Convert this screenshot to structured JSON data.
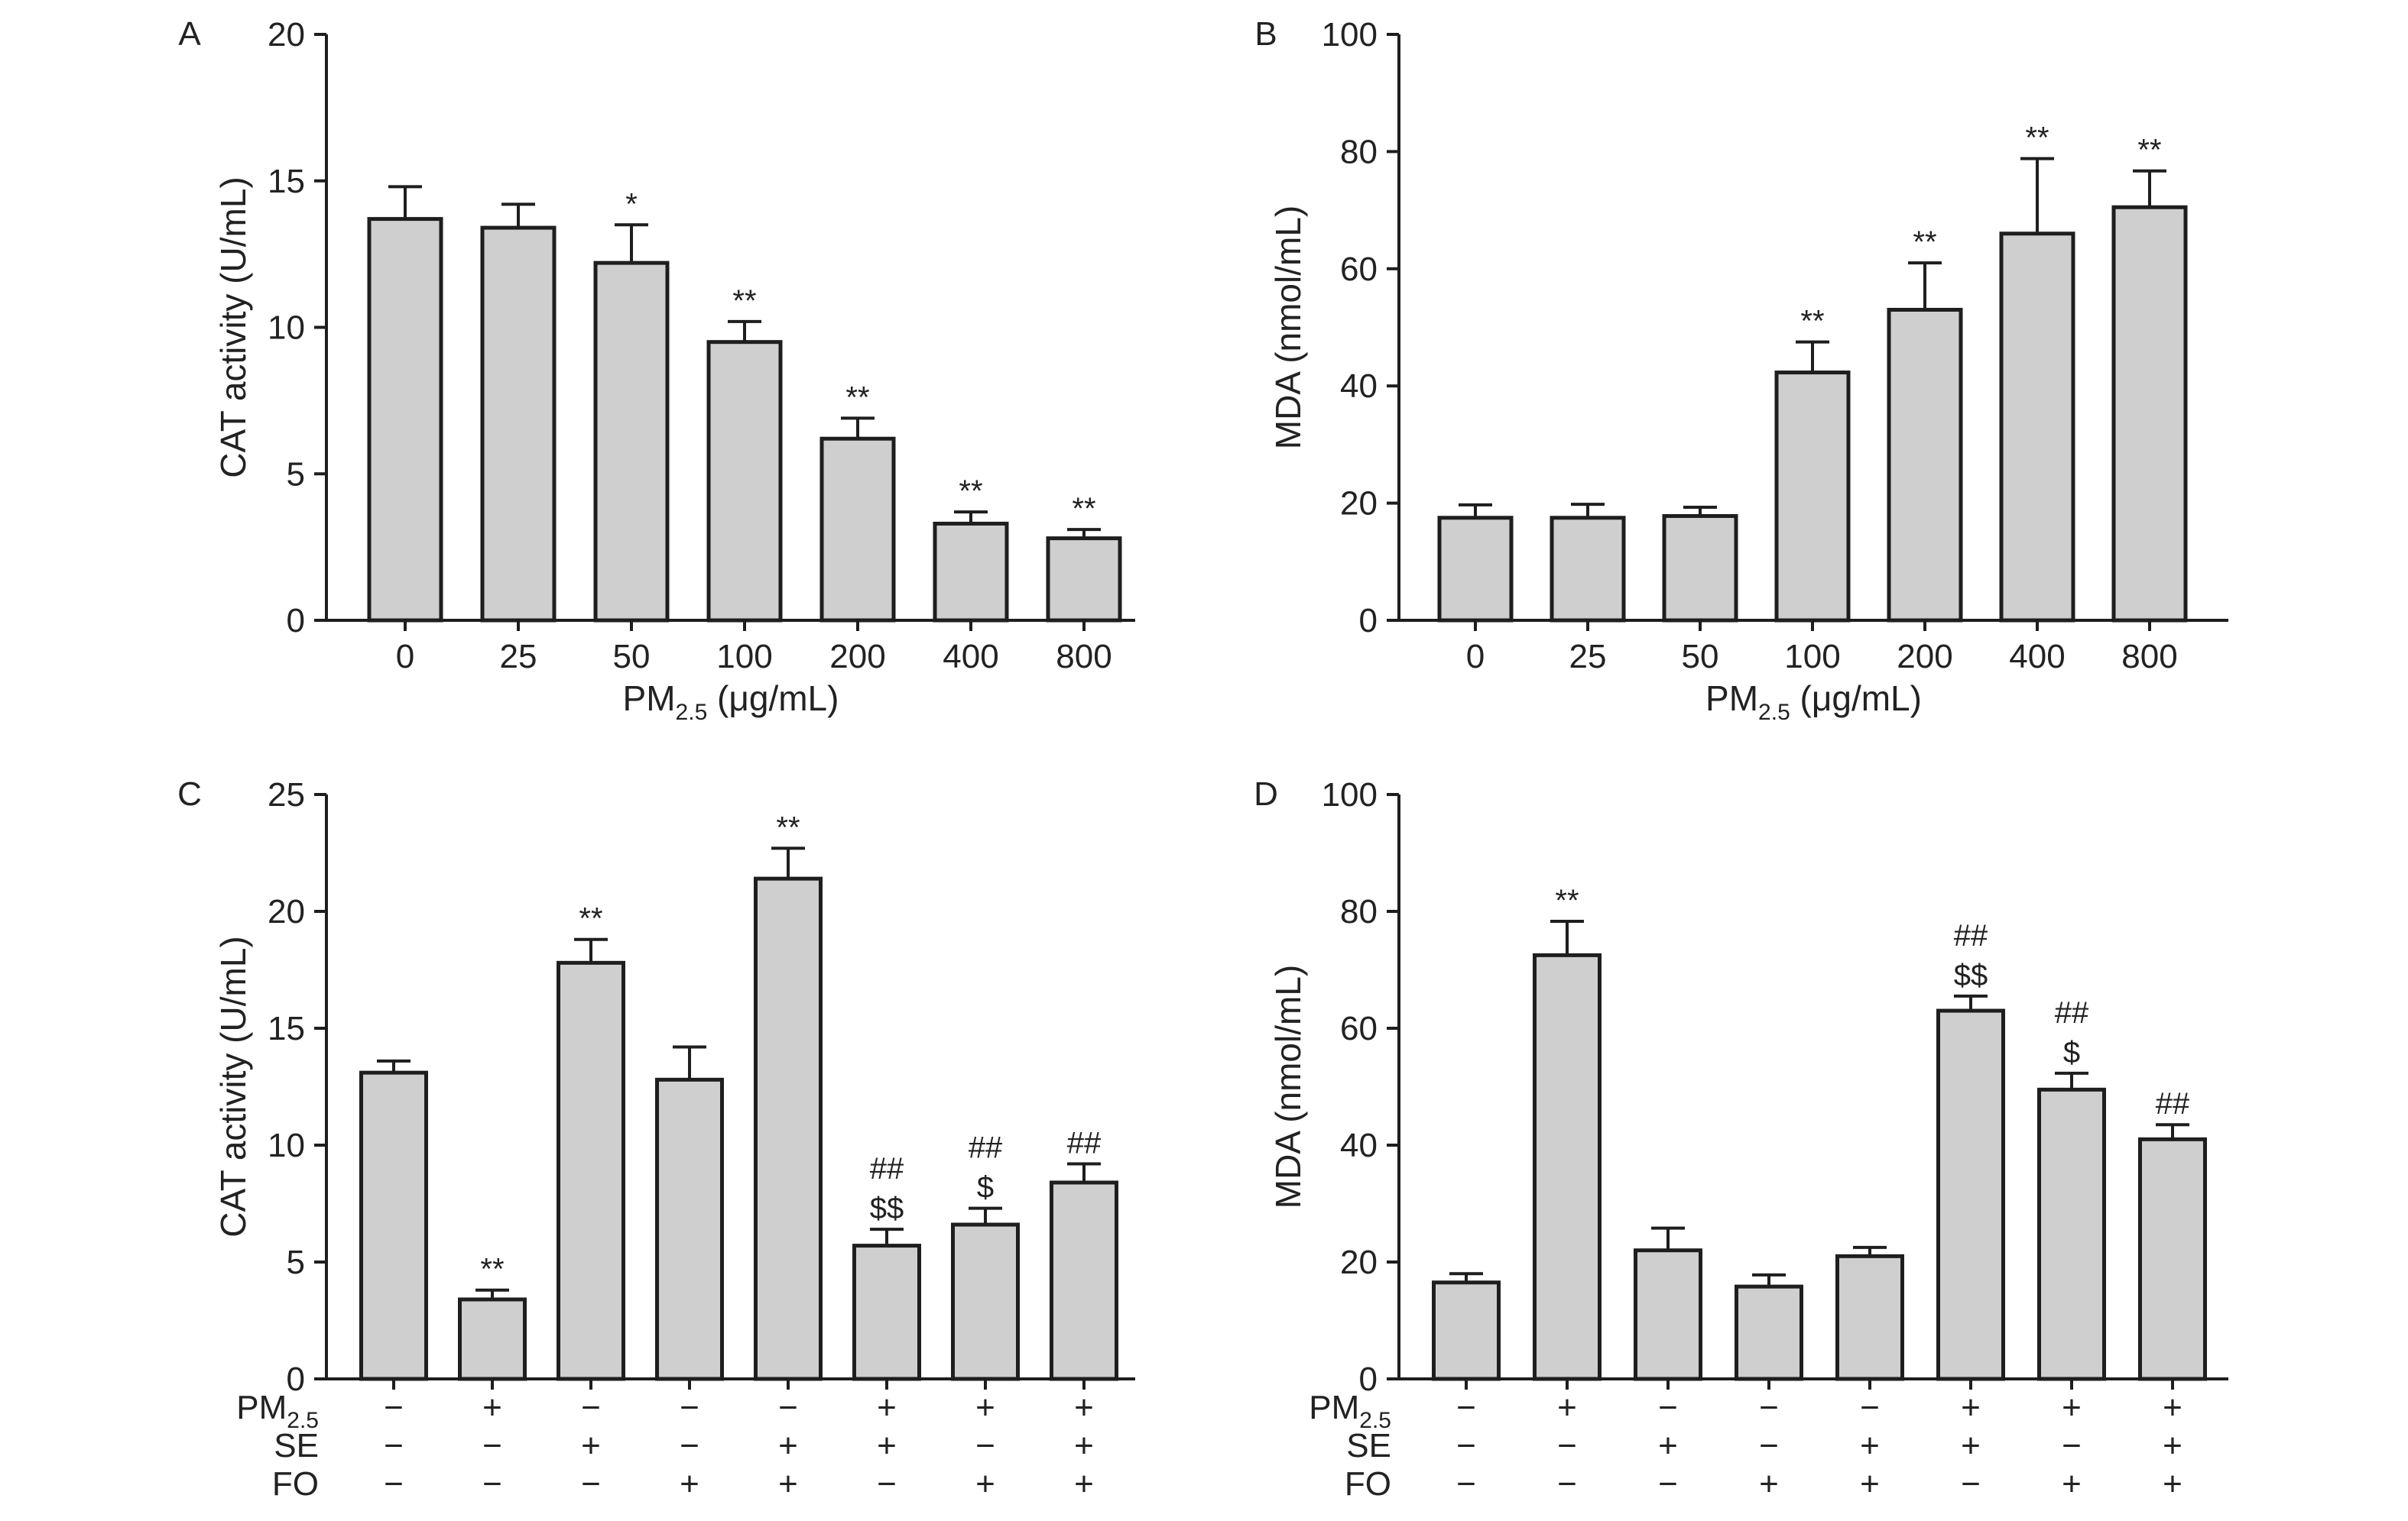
{
  "chart_data": [
    {
      "panel": "A",
      "type": "bar",
      "categories": [
        "0",
        "25",
        "50",
        "100",
        "200",
        "400",
        "800"
      ],
      "values": [
        13.7,
        13.4,
        12.2,
        9.5,
        6.2,
        3.3,
        2.8
      ],
      "errors": [
        1.1,
        0.8,
        1.3,
        0.7,
        0.7,
        0.4,
        0.3
      ],
      "annotations": [
        [],
        [],
        [
          "*"
        ],
        [
          "**"
        ],
        [
          "**"
        ],
        [
          "**"
        ],
        [
          "**"
        ]
      ],
      "ylabel": "CAT activity (U/mL)",
      "xlabel_main": "PM",
      "xlabel_sub": "2.5",
      "xlabel_rest": " (μg/mL)",
      "ylim": [
        0,
        20
      ],
      "yticks": [
        "0",
        "5",
        "10",
        "15",
        "20"
      ],
      "grid": false
    },
    {
      "panel": "B",
      "type": "bar",
      "categories": [
        "0",
        "25",
        "50",
        "100",
        "200",
        "400",
        "800"
      ],
      "values": [
        17.5,
        17.5,
        17.8,
        42.3,
        53,
        66,
        70.5
      ],
      "errors": [
        2.2,
        2.3,
        1.5,
        5.2,
        8,
        12.8,
        6.2
      ],
      "annotations": [
        [],
        [],
        [],
        [
          "**"
        ],
        [
          "**"
        ],
        [
          "**"
        ],
        [
          "**"
        ]
      ],
      "ylabel": "MDA (nmol/mL)",
      "xlabel_main": "PM",
      "xlabel_sub": "2.5",
      "xlabel_rest": " (μg/mL)",
      "ylim": [
        0,
        100
      ],
      "yticks": [
        "0",
        "20",
        "40",
        "60",
        "80",
        "100"
      ],
      "grid": false
    },
    {
      "panel": "C",
      "type": "bar",
      "groups": 8,
      "values": [
        13.1,
        3.4,
        17.8,
        12.8,
        21.4,
        5.7,
        6.6,
        8.4
      ],
      "errors": [
        0.5,
        0.4,
        1.0,
        1.4,
        1.3,
        0.7,
        0.7,
        0.8
      ],
      "annotations": [
        [],
        [
          "**"
        ],
        [
          "**"
        ],
        [],
        [
          "**"
        ],
        [
          "##",
          "$$"
        ],
        [
          "##",
          "$"
        ],
        [
          "##"
        ]
      ],
      "ylabel": "CAT activity (U/mL)",
      "ylim": [
        0,
        25
      ],
      "yticks": [
        "0",
        "5",
        "10",
        "15",
        "20",
        "25"
      ],
      "treatment_rows": [
        {
          "label_main": "PM",
          "label_sub": "2.5",
          "signs": [
            "−",
            "+",
            "−",
            "−",
            "−",
            "+",
            "+",
            "+"
          ]
        },
        {
          "label_main": "SE",
          "label_sub": "",
          "signs": [
            "−",
            "−",
            "+",
            "−",
            "+",
            "+",
            "−",
            "+"
          ]
        },
        {
          "label_main": "FO",
          "label_sub": "",
          "signs": [
            "−",
            "−",
            "−",
            "+",
            "+",
            "−",
            "+",
            "+"
          ]
        }
      ],
      "grid": false
    },
    {
      "panel": "D",
      "type": "bar",
      "groups": 8,
      "values": [
        16.5,
        72.5,
        22,
        15.8,
        21,
        63,
        49.5,
        41
      ],
      "errors": [
        1.5,
        5.8,
        3.8,
        2,
        1.5,
        2.5,
        2.8,
        2.5
      ],
      "annotations": [
        [],
        [
          "**"
        ],
        [],
        [],
        [],
        [
          "##",
          "$$"
        ],
        [
          "##",
          "$"
        ],
        [
          "##"
        ]
      ],
      "ylabel": "MDA (nmol/mL)",
      "ylim": [
        0,
        100
      ],
      "yticks": [
        "0",
        "20",
        "40",
        "60",
        "80",
        "100"
      ],
      "treatment_rows": [
        {
          "label_main": "PM",
          "label_sub": "2.5",
          "signs": [
            "−",
            "+",
            "−",
            "−",
            "−",
            "+",
            "+",
            "+"
          ]
        },
        {
          "label_main": "SE",
          "label_sub": "",
          "signs": [
            "−",
            "−",
            "+",
            "−",
            "+",
            "+",
            "−",
            "+"
          ]
        },
        {
          "label_main": "FO",
          "label_sub": "",
          "signs": [
            "−",
            "−",
            "−",
            "+",
            "+",
            "−",
            "+",
            "+"
          ]
        }
      ],
      "grid": false
    }
  ]
}
